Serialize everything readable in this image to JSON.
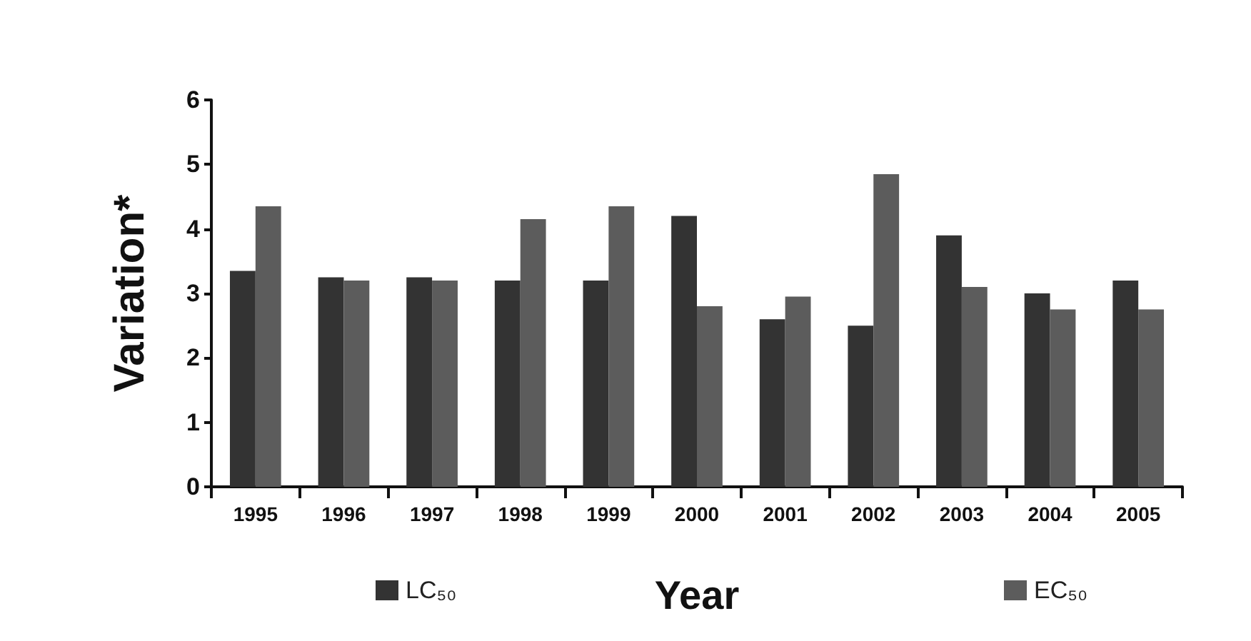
{
  "chart_data": {
    "type": "bar",
    "xlabel": "Year",
    "ylabel": "Variation*",
    "categories": [
      "1995",
      "1996",
      "1997",
      "1998",
      "1999",
      "2000",
      "2001",
      "2002",
      "2003",
      "2004",
      "2005"
    ],
    "series": [
      {
        "name": "LC₅₀",
        "color": "#333333",
        "values": [
          3.35,
          3.25,
          3.25,
          3.2,
          3.2,
          4.2,
          2.6,
          2.5,
          3.9,
          3.0,
          3.2
        ]
      },
      {
        "name": "EC₅₀",
        "color": "#5c5c5c",
        "values": [
          4.35,
          3.2,
          3.2,
          4.15,
          4.35,
          2.8,
          2.95,
          4.85,
          3.1,
          2.75,
          2.75
        ]
      }
    ],
    "ylim": [
      0,
      6
    ],
    "yticks": [
      0,
      1,
      2,
      3,
      4,
      5,
      6
    ],
    "grid": false,
    "legend": "bottom"
  }
}
